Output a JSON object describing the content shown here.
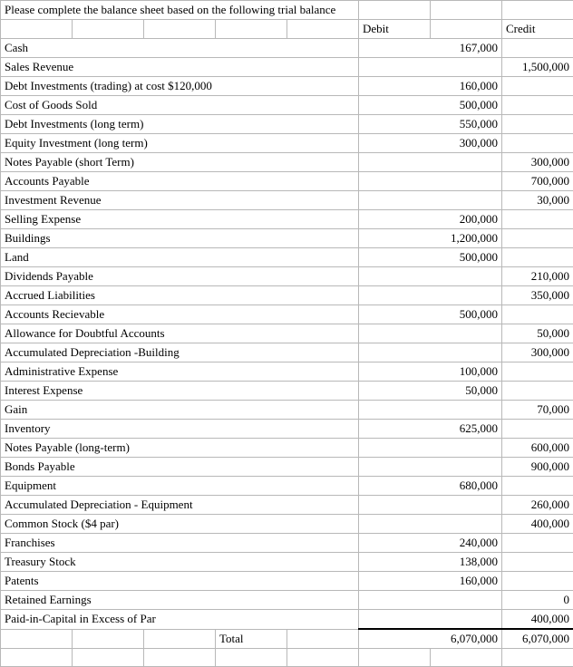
{
  "title": "Please complete the balance sheet based on the following trial balance",
  "headers": {
    "debit": "Debit",
    "credit": "Credit"
  },
  "rows": [
    {
      "label": "Cash",
      "debit": "167,000",
      "credit": ""
    },
    {
      "label": "Sales Revenue",
      "debit": "",
      "credit": "1,500,000"
    },
    {
      "label": "Debt Investments (trading) at cost $120,000",
      "debit": "160,000",
      "credit": ""
    },
    {
      "label": "Cost of Goods Sold",
      "debit": "500,000",
      "credit": ""
    },
    {
      "label": "Debt Investments (long term)",
      "debit": "550,000",
      "credit": ""
    },
    {
      "label": "Equity Investment (long term)",
      "debit": "300,000",
      "credit": ""
    },
    {
      "label": "Notes Payable (short Term)",
      "debit": "",
      "credit": "300,000"
    },
    {
      "label": "Accounts Payable",
      "debit": "",
      "credit": "700,000"
    },
    {
      "label": "Investment Revenue",
      "debit": "",
      "credit": "30,000"
    },
    {
      "label": "Selling Expense",
      "debit": "200,000",
      "credit": ""
    },
    {
      "label": "Buildings",
      "debit": "1,200,000",
      "credit": ""
    },
    {
      "label": "Land",
      "debit": "500,000",
      "credit": ""
    },
    {
      "label": "Dividends Payable",
      "debit": "",
      "credit": "210,000"
    },
    {
      "label": "Accrued Liabilities",
      "debit": "",
      "credit": "350,000"
    },
    {
      "label": "Accounts Recievable",
      "debit": "500,000",
      "credit": ""
    },
    {
      "label": "Allowance for Doubtful Accounts",
      "debit": "",
      "credit": "50,000"
    },
    {
      "label": "Accumulated Depreciation -Building",
      "debit": "",
      "credit": "300,000"
    },
    {
      "label": "Administrative Expense",
      "debit": "100,000",
      "credit": ""
    },
    {
      "label": "Interest Expense",
      "debit": "50,000",
      "credit": ""
    },
    {
      "label": "Gain",
      "debit": "",
      "credit": "70,000"
    },
    {
      "label": "Inventory",
      "debit": "625,000",
      "credit": ""
    },
    {
      "label": "Notes Payable (long-term)",
      "debit": "",
      "credit": "600,000"
    },
    {
      "label": "Bonds Payable",
      "debit": "",
      "credit": "900,000"
    },
    {
      "label": "Equipment",
      "debit": "680,000",
      "credit": ""
    },
    {
      "label": "Accumulated Depreciation - Equipment",
      "debit": "",
      "credit": "260,000"
    },
    {
      "label": "Common Stock ($4  par)",
      "debit": "",
      "credit": "400,000"
    },
    {
      "label": "Franchises",
      "debit": "240,000",
      "credit": ""
    },
    {
      "label": "Treasury Stock",
      "debit": "138,000",
      "credit": ""
    },
    {
      "label": "Patents",
      "debit": "160,000",
      "credit": ""
    },
    {
      "label": "Retained Earnings",
      "debit": "",
      "credit": "0"
    },
    {
      "label": "Paid-in-Capital in Excess of Par",
      "debit": "",
      "credit": "400,000"
    }
  ],
  "totals": {
    "label": "Total",
    "debit": "6,070,000",
    "credit": "6,070,000"
  }
}
